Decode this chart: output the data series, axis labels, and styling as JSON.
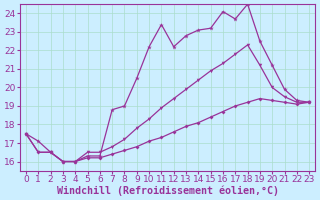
{
  "background_color": "#cceeff",
  "line_color": "#993399",
  "grid_color": "#aaddcc",
  "xlabel": "Windchill (Refroidissement éolien,°C)",
  "xlabel_fontsize": 7.2,
  "tick_fontsize": 6.5,
  "xlim": [
    -0.5,
    23.5
  ],
  "ylim": [
    15.5,
    24.5
  ],
  "yticks": [
    16,
    17,
    18,
    19,
    20,
    21,
    22,
    23,
    24
  ],
  "xticks": [
    0,
    1,
    2,
    3,
    4,
    5,
    6,
    7,
    8,
    9,
    10,
    11,
    12,
    13,
    14,
    15,
    16,
    17,
    18,
    19,
    20,
    21,
    22,
    23
  ],
  "line1_x": [
    0,
    1,
    2,
    3,
    4,
    5,
    6,
    7,
    8,
    9,
    10,
    11,
    12,
    13,
    14,
    15,
    16,
    17,
    18,
    19,
    20,
    21,
    22,
    23
  ],
  "line1_y": [
    17.5,
    17.1,
    16.5,
    16.0,
    16.0,
    16.3,
    16.3,
    18.8,
    19.0,
    20.5,
    22.2,
    23.4,
    22.2,
    22.8,
    23.1,
    23.2,
    24.1,
    23.7,
    24.5,
    22.5,
    21.2,
    19.9,
    19.3,
    19.2
  ],
  "line2_x": [
    0,
    1,
    2,
    3,
    4,
    5,
    6,
    7,
    8,
    9,
    10,
    11,
    12,
    13,
    14,
    15,
    16,
    17,
    18,
    19,
    20,
    21,
    22,
    23
  ],
  "line2_y": [
    17.5,
    16.5,
    16.5,
    16.0,
    16.0,
    16.5,
    16.5,
    16.8,
    17.2,
    17.8,
    18.3,
    18.9,
    19.4,
    19.9,
    20.4,
    20.9,
    21.3,
    21.8,
    22.3,
    21.2,
    20.0,
    19.5,
    19.2,
    19.2
  ],
  "line3_x": [
    0,
    1,
    2,
    3,
    4,
    5,
    6,
    7,
    8,
    9,
    10,
    11,
    12,
    13,
    14,
    15,
    16,
    17,
    18,
    19,
    20,
    21,
    22,
    23
  ],
  "line3_y": [
    17.5,
    16.5,
    16.5,
    16.0,
    16.0,
    16.2,
    16.2,
    16.4,
    16.6,
    16.8,
    17.1,
    17.3,
    17.6,
    17.9,
    18.1,
    18.4,
    18.7,
    19.0,
    19.2,
    19.4,
    19.3,
    19.2,
    19.1,
    19.2
  ]
}
